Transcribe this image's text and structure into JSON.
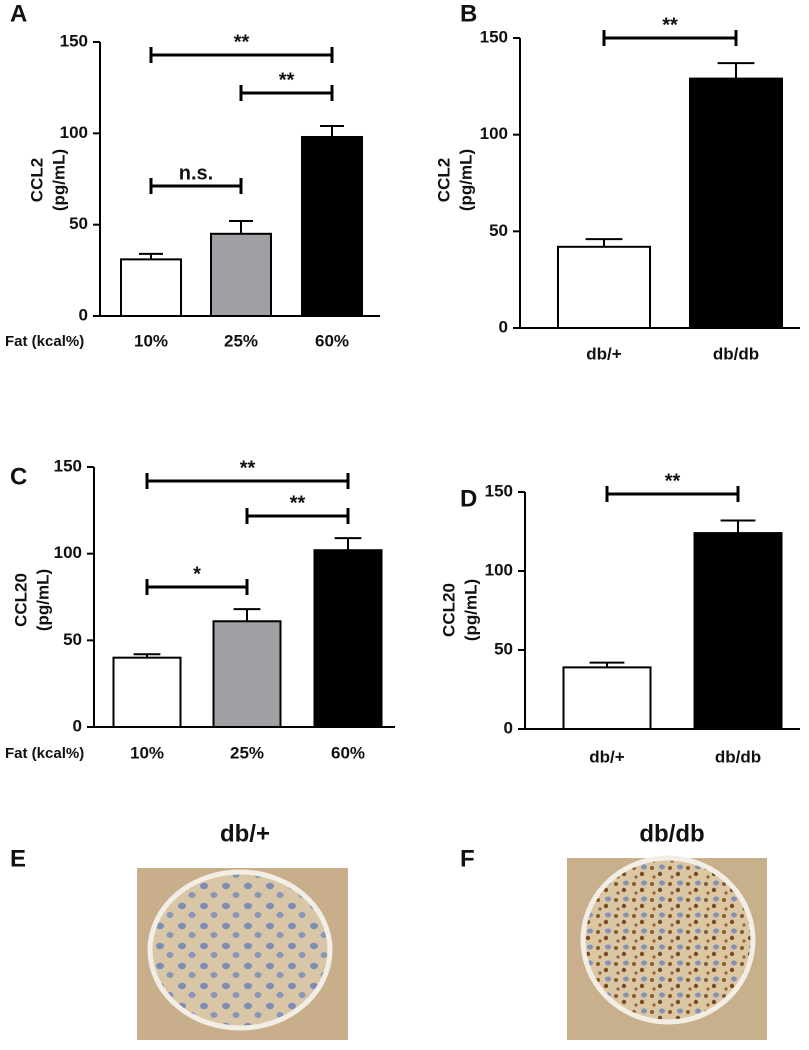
{
  "chart_data": [
    {
      "type": "bar",
      "panel": "A",
      "ylabel": "CCL2",
      "ylabel_unit": "(pg/mL)",
      "x_label": "Fat (kcal%)",
      "categories": [
        "10%",
        "25%",
        "60%"
      ],
      "values": [
        31,
        45,
        98
      ],
      "errors": [
        3,
        7,
        6
      ],
      "colors": [
        "#ffffff",
        "#a0a0a4",
        "#000000"
      ],
      "ylim": [
        0,
        150
      ],
      "yticks": [
        0,
        50,
        100,
        150
      ],
      "annotations": [
        {
          "text": "**",
          "between": [
            "10%",
            "60%"
          ]
        },
        {
          "text": "**",
          "between": [
            "25%",
            "60%"
          ]
        },
        {
          "text": "n.s.",
          "between": [
            "10%",
            "25%"
          ]
        }
      ]
    },
    {
      "type": "bar",
      "panel": "B",
      "ylabel": "CCL2",
      "ylabel_unit": "(pg/mL)",
      "categories": [
        "db/+",
        "db/db"
      ],
      "values": [
        42,
        129
      ],
      "errors": [
        4,
        8
      ],
      "colors": [
        "#ffffff",
        "#000000"
      ],
      "ylim": [
        0,
        150
      ],
      "yticks": [
        0,
        50,
        100,
        150
      ],
      "annotations": [
        {
          "text": "**",
          "between": [
            "db/+",
            "db/db"
          ]
        }
      ]
    },
    {
      "type": "bar",
      "panel": "C",
      "ylabel": "CCL20",
      "ylabel_unit": "(pg/mL)",
      "x_label": "Fat (kcal%)",
      "categories": [
        "10%",
        "25%",
        "60%"
      ],
      "values": [
        40,
        61,
        102
      ],
      "errors": [
        2,
        7,
        7
      ],
      "colors": [
        "#ffffff",
        "#a0a0a4",
        "#000000"
      ],
      "ylim": [
        0,
        150
      ],
      "yticks": [
        0,
        50,
        100,
        150
      ],
      "annotations": [
        {
          "text": "**",
          "between": [
            "10%",
            "60%"
          ]
        },
        {
          "text": "**",
          "between": [
            "25%",
            "60%"
          ]
        },
        {
          "text": "*",
          "between": [
            "10%",
            "25%"
          ]
        }
      ]
    },
    {
      "type": "bar",
      "panel": "D",
      "ylabel": "CCL20",
      "ylabel_unit": "(pg/mL)",
      "categories": [
        "db/+",
        "db/db"
      ],
      "values": [
        39,
        124
      ],
      "errors": [
        3,
        8
      ],
      "colors": [
        "#ffffff",
        "#000000"
      ],
      "ylim": [
        0,
        150
      ],
      "yticks": [
        0,
        50,
        100,
        150
      ],
      "annotations": [
        {
          "text": "**",
          "between": [
            "db/+",
            "db/db"
          ]
        }
      ]
    }
  ],
  "images": [
    {
      "panel": "E",
      "title": "db/+"
    },
    {
      "panel": "F",
      "title": "db/db"
    }
  ]
}
